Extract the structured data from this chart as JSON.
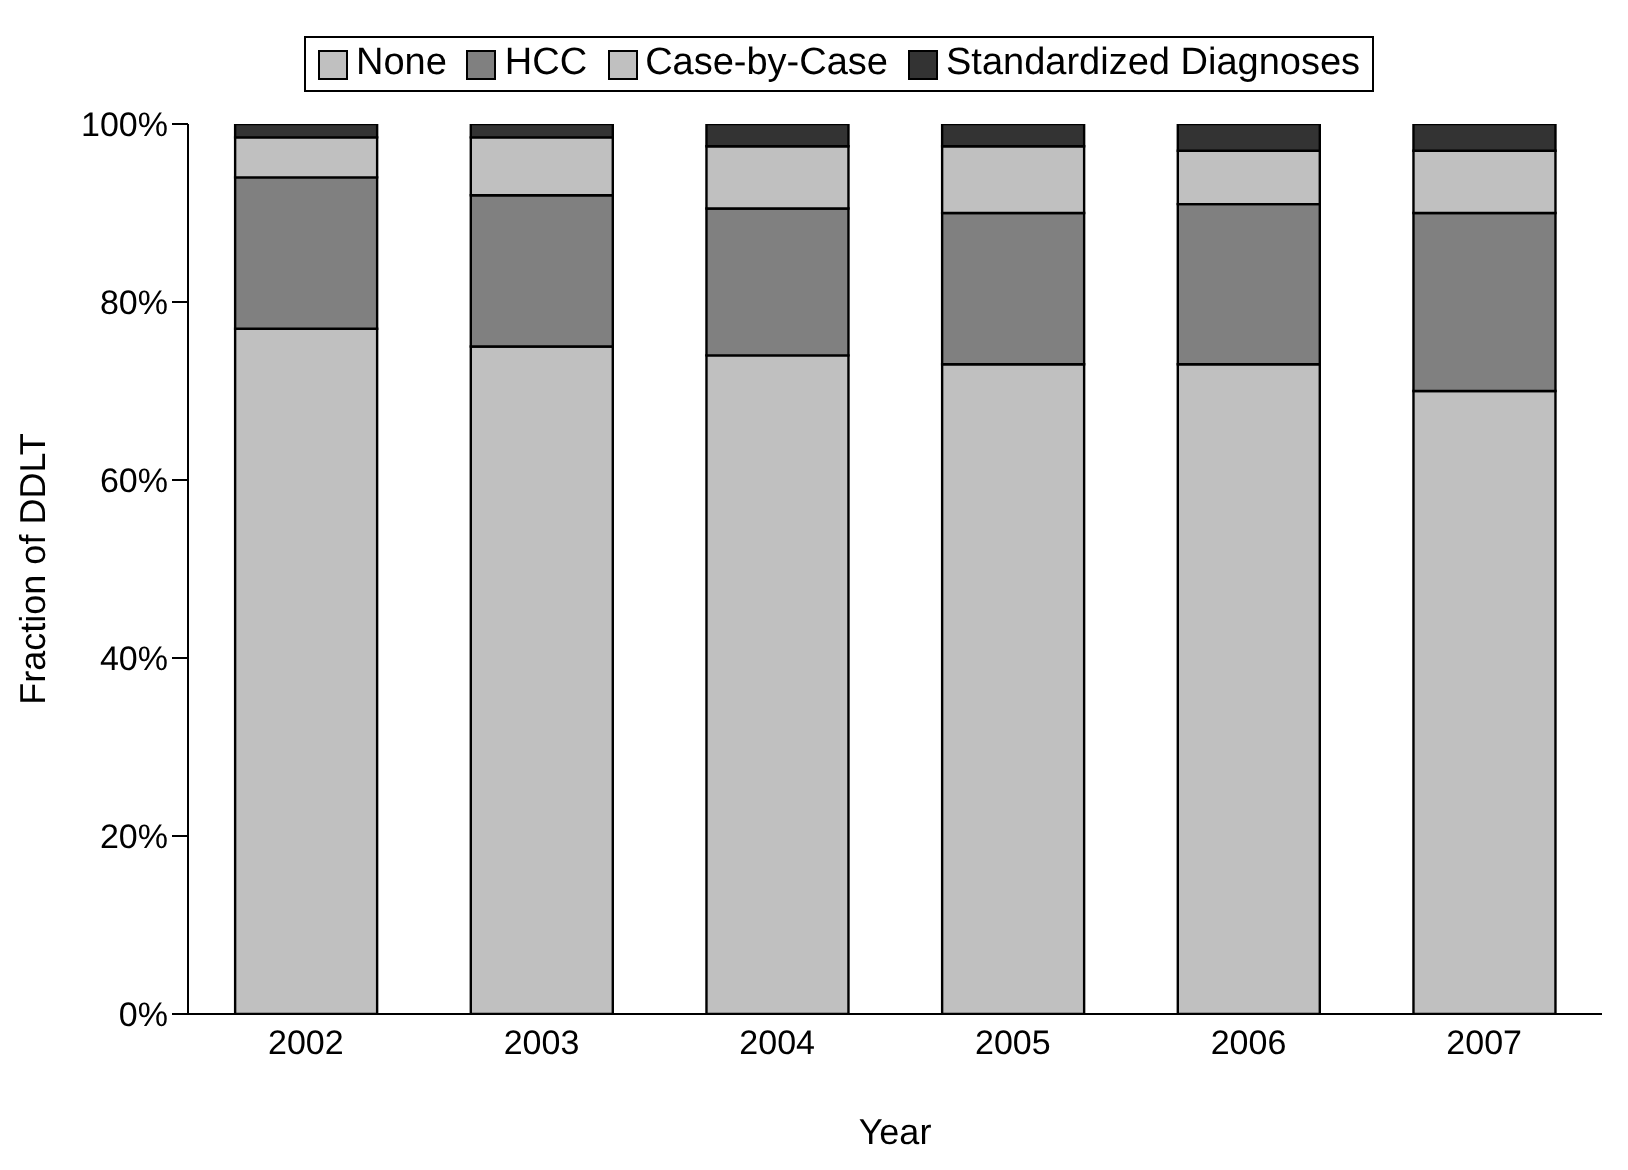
{
  "chart_data": {
    "type": "bar",
    "stacked": true,
    "xlabel": "Year",
    "ylabel": "Fraction of DDLT",
    "categories": [
      "2002",
      "2003",
      "2004",
      "2005",
      "2006",
      "2007"
    ],
    "series": [
      {
        "name": "None",
        "color": "#c0c0c0",
        "values": [
          77,
          75,
          74,
          73,
          73,
          70
        ]
      },
      {
        "name": "HCC",
        "color": "#808080",
        "values": [
          17,
          17,
          16.5,
          17,
          18,
          20
        ]
      },
      {
        "name": "Case-by-Case",
        "color": "#c0c0c0",
        "values": [
          4.5,
          6.5,
          7,
          7.5,
          6,
          7
        ]
      },
      {
        "name": "Standardized Diagnoses",
        "color": "#333333",
        "values": [
          1.5,
          1.5,
          2.5,
          2.5,
          3,
          3
        ]
      }
    ],
    "ylim": [
      0,
      100
    ],
    "yticks": [
      {
        "value": 0,
        "label": "0%"
      },
      {
        "value": 20,
        "label": "20%"
      },
      {
        "value": 40,
        "label": "40%"
      },
      {
        "value": 60,
        "label": "60%"
      },
      {
        "value": 80,
        "label": "80%"
      },
      {
        "value": 100,
        "label": "100%"
      }
    ],
    "grid": false,
    "legend": "top"
  }
}
